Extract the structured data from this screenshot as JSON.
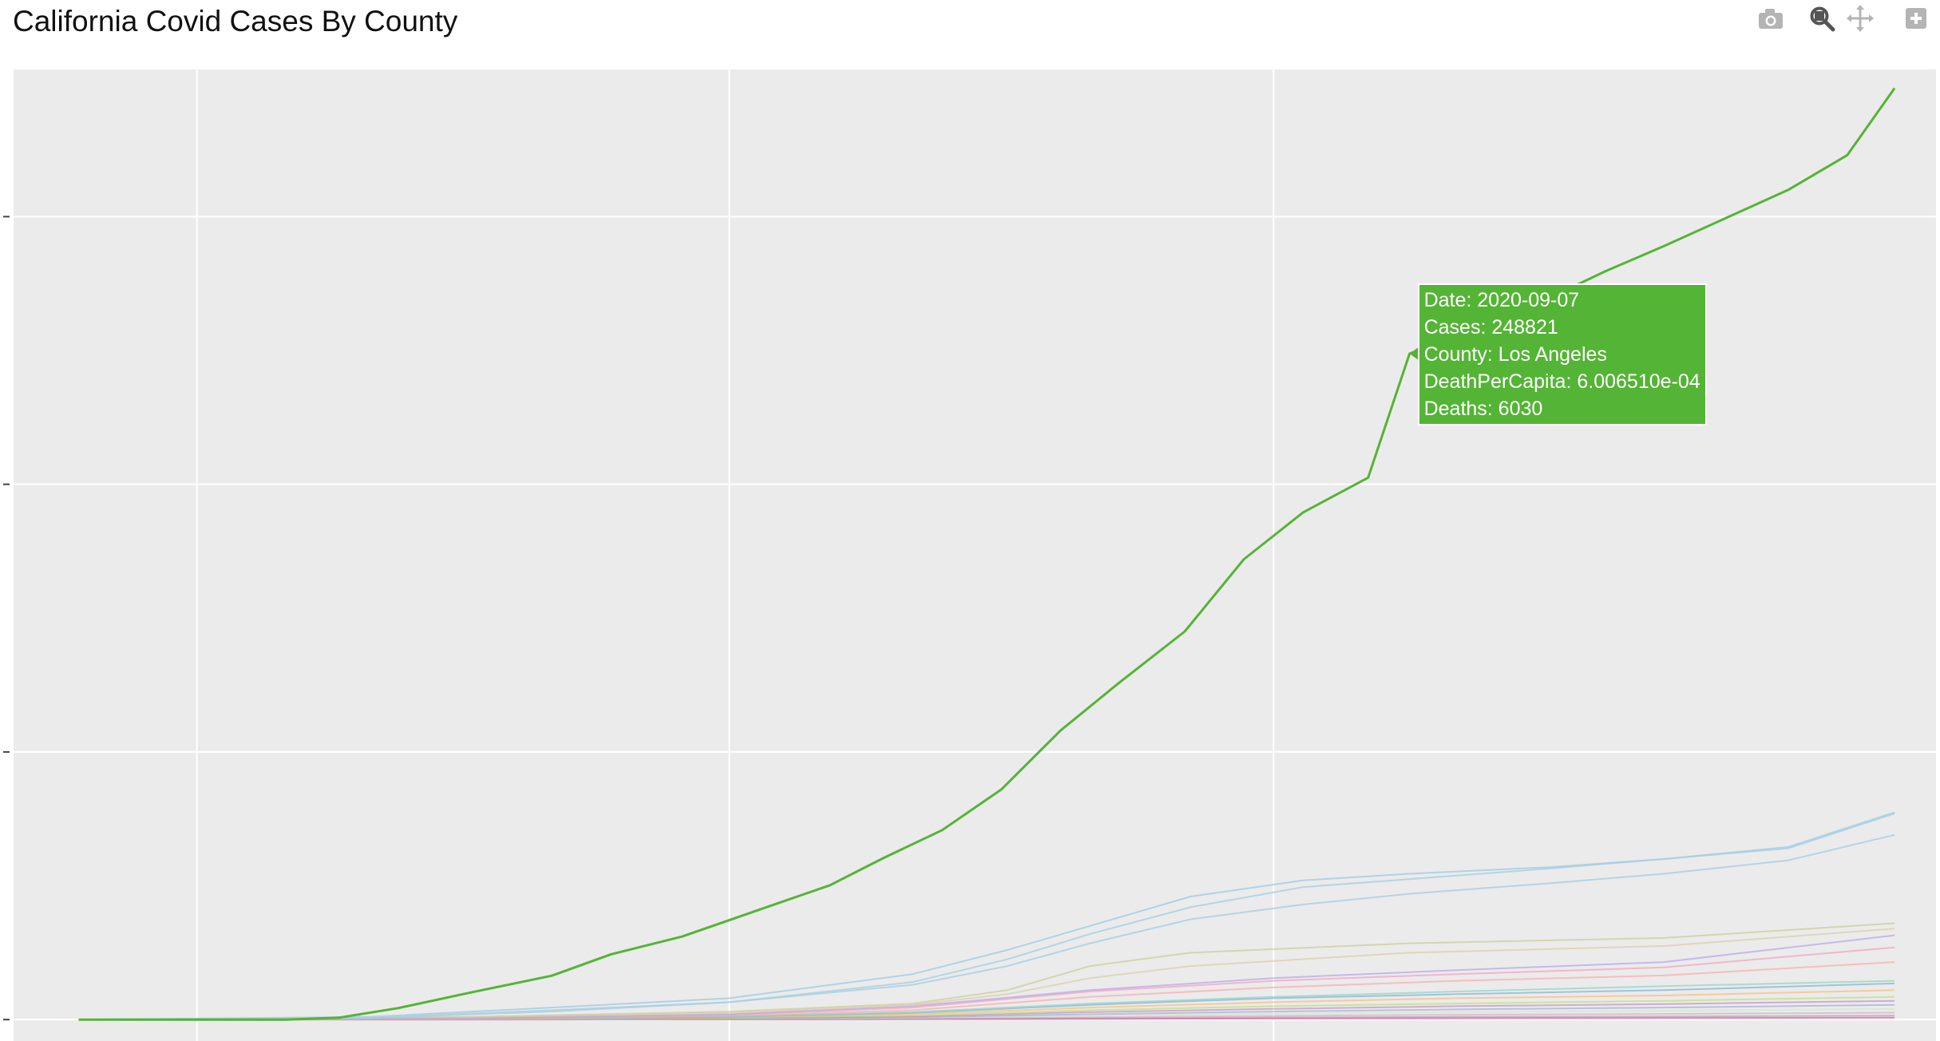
{
  "chart_title": "California Covid Cases By County",
  "modebar": {
    "camera": "camera-icon",
    "zoom": "zoom-icon",
    "pan": "pan-icon",
    "zoom_in": "zoom-in-icon"
  },
  "colors": {
    "background": "#ebebeb",
    "grid": "#ffffff",
    "highlight": "#54b435"
  },
  "hover": {
    "date": "Date: 2020-09-07",
    "cases": "Cases: 248821",
    "county": "County: Los Angeles",
    "death_per_capita": "DeathPerCapita: 6.006510e-04",
    "deaths": "Deaths: 6030"
  },
  "chart_data": {
    "type": "line",
    "title": "California Covid Cases By County",
    "x_range": [
      "2020-01-15",
      "2020-12-05"
    ],
    "y_range": [
      -8000,
      355000
    ],
    "grid": true,
    "legend": "none",
    "series": [
      {
        "color": "#54b435",
        "opacity": 1,
        "width": 3,
        "points": [
          [
            "2020-01-26",
            0
          ],
          [
            "2020-03-01",
            0
          ],
          [
            "2020-03-10",
            700
          ],
          [
            "2020-03-20",
            4300
          ],
          [
            "2020-04-01",
            10000
          ],
          [
            "2020-04-15",
            16400
          ],
          [
            "2020-04-25",
            24400
          ],
          [
            "2020-05-07",
            31000
          ],
          [
            "2020-05-20",
            41000
          ],
          [
            "2020-06-01",
            50200
          ],
          [
            "2020-06-10",
            60300
          ],
          [
            "2020-06-20",
            70800
          ],
          [
            "2020-06-30",
            86000
          ],
          [
            "2020-07-10",
            108000
          ],
          [
            "2020-07-20",
            126000
          ],
          [
            "2020-07-31",
            145000
          ],
          [
            "2020-08-10",
            172000
          ],
          [
            "2020-08-20",
            189500
          ],
          [
            "2020-08-31",
            202500
          ],
          [
            "2020-09-07",
            248821
          ],
          [
            "2020-09-20",
            260000
          ],
          [
            "2020-10-01",
            270000
          ],
          [
            "2020-10-10",
            279500
          ],
          [
            "2020-10-20",
            289000
          ],
          [
            "2020-10-31",
            300000
          ],
          [
            "2020-11-10",
            310000
          ],
          [
            "2020-11-20",
            323000
          ],
          [
            "2020-11-28",
            348000
          ]
        ]
      },
      {
        "color": "#a6cee3",
        "opacity": 0.85,
        "width": 2,
        "points": [
          [
            "2020-01-26",
            0
          ],
          [
            "2020-03-15",
            1000
          ],
          [
            "2020-04-15",
            4500
          ],
          [
            "2020-05-15",
            8000
          ],
          [
            "2020-06-15",
            17000
          ],
          [
            "2020-07-01",
            26000
          ],
          [
            "2020-07-15",
            35000
          ],
          [
            "2020-08-01",
            46000
          ],
          [
            "2020-08-20",
            52000
          ],
          [
            "2020-09-07",
            54500
          ],
          [
            "2020-10-01",
            57000
          ],
          [
            "2020-10-20",
            60000
          ],
          [
            "2020-11-10",
            64000
          ],
          [
            "2020-11-28",
            77000
          ]
        ]
      },
      {
        "color": "#a6cee3",
        "opacity": 0.8,
        "width": 2,
        "points": [
          [
            "2020-01-26",
            0
          ],
          [
            "2020-03-15",
            700
          ],
          [
            "2020-04-15",
            3500
          ],
          [
            "2020-05-15",
            6500
          ],
          [
            "2020-06-15",
            14000
          ],
          [
            "2020-07-01",
            22500
          ],
          [
            "2020-07-15",
            32000
          ],
          [
            "2020-08-01",
            42000
          ],
          [
            "2020-08-20",
            49500
          ],
          [
            "2020-09-07",
            52500
          ],
          [
            "2020-10-01",
            56500
          ],
          [
            "2020-10-20",
            60000
          ],
          [
            "2020-11-10",
            64500
          ],
          [
            "2020-11-28",
            77500
          ]
        ]
      },
      {
        "color": "#a6cee3",
        "opacity": 0.8,
        "width": 2,
        "points": [
          [
            "2020-01-26",
            0
          ],
          [
            "2020-03-15",
            600
          ],
          [
            "2020-04-15",
            3000
          ],
          [
            "2020-05-15",
            6500
          ],
          [
            "2020-06-15",
            13000
          ],
          [
            "2020-07-01",
            20000
          ],
          [
            "2020-07-15",
            28500
          ],
          [
            "2020-08-01",
            37500
          ],
          [
            "2020-08-20",
            43000
          ],
          [
            "2020-09-07",
            47000
          ],
          [
            "2020-10-01",
            51000
          ],
          [
            "2020-10-20",
            54500
          ],
          [
            "2020-11-10",
            59500
          ],
          [
            "2020-11-28",
            69000
          ]
        ]
      },
      {
        "color": "#c7c98f",
        "opacity": 0.65,
        "width": 2,
        "points": [
          [
            "2020-01-26",
            0
          ],
          [
            "2020-04-01",
            1000
          ],
          [
            "2020-05-15",
            3000
          ],
          [
            "2020-06-15",
            6000
          ],
          [
            "2020-07-01",
            11000
          ],
          [
            "2020-07-15",
            20000
          ],
          [
            "2020-08-01",
            25000
          ],
          [
            "2020-09-07",
            28500
          ],
          [
            "2020-10-20",
            30500
          ],
          [
            "2020-11-28",
            36000
          ]
        ]
      },
      {
        "color": "#d6c89a",
        "opacity": 0.6,
        "width": 2,
        "points": [
          [
            "2020-01-26",
            0
          ],
          [
            "2020-04-01",
            900
          ],
          [
            "2020-05-15",
            2500
          ],
          [
            "2020-06-15",
            5500
          ],
          [
            "2020-07-01",
            9500
          ],
          [
            "2020-07-15",
            15500
          ],
          [
            "2020-08-01",
            20000
          ],
          [
            "2020-09-07",
            25000
          ],
          [
            "2020-10-20",
            27500
          ],
          [
            "2020-11-28",
            34000
          ]
        ]
      },
      {
        "color": "#b8a3e8",
        "opacity": 0.7,
        "width": 2,
        "points": [
          [
            "2020-01-26",
            0
          ],
          [
            "2020-04-01",
            500
          ],
          [
            "2020-05-15",
            2000
          ],
          [
            "2020-06-15",
            5000
          ],
          [
            "2020-07-15",
            11000
          ],
          [
            "2020-08-15",
            15500
          ],
          [
            "2020-09-15",
            18500
          ],
          [
            "2020-10-20",
            21500
          ],
          [
            "2020-11-28",
            31500
          ]
        ]
      },
      {
        "color": "#f4a0c0",
        "opacity": 0.7,
        "width": 2,
        "points": [
          [
            "2020-01-26",
            0
          ],
          [
            "2020-04-01",
            500
          ],
          [
            "2020-05-15",
            1800
          ],
          [
            "2020-06-15",
            4500
          ],
          [
            "2020-07-15",
            10500
          ],
          [
            "2020-08-15",
            14500
          ],
          [
            "2020-09-15",
            17000
          ],
          [
            "2020-10-20",
            19500
          ],
          [
            "2020-11-28",
            27000
          ]
        ]
      },
      {
        "color": "#ff9e9e",
        "opacity": 0.6,
        "width": 2,
        "points": [
          [
            "2020-01-26",
            0
          ],
          [
            "2020-04-01",
            300
          ],
          [
            "2020-05-15",
            1500
          ],
          [
            "2020-06-15",
            3500
          ],
          [
            "2020-07-15",
            8500
          ],
          [
            "2020-08-15",
            12000
          ],
          [
            "2020-09-15",
            14500
          ],
          [
            "2020-10-20",
            16500
          ],
          [
            "2020-11-28",
            21500
          ]
        ]
      },
      {
        "color": "#8dd3c7",
        "opacity": 0.7,
        "width": 2,
        "points": [
          [
            "2020-01-26",
            0
          ],
          [
            "2020-04-01",
            300
          ],
          [
            "2020-05-15",
            1200
          ],
          [
            "2020-06-15",
            2800
          ],
          [
            "2020-07-15",
            6000
          ],
          [
            "2020-08-15",
            8500
          ],
          [
            "2020-09-15",
            10500
          ],
          [
            "2020-10-20",
            12500
          ],
          [
            "2020-11-28",
            14500
          ]
        ]
      },
      {
        "color": "#80b1d3",
        "opacity": 0.7,
        "width": 2,
        "points": [
          [
            "2020-01-26",
            0
          ],
          [
            "2020-04-01",
            250
          ],
          [
            "2020-05-15",
            1000
          ],
          [
            "2020-06-15",
            2500
          ],
          [
            "2020-07-15",
            5500
          ],
          [
            "2020-08-15",
            8000
          ],
          [
            "2020-09-15",
            9500
          ],
          [
            "2020-10-20",
            11000
          ],
          [
            "2020-11-28",
            13500
          ]
        ]
      },
      {
        "color": "#fdb462",
        "opacity": 0.6,
        "width": 2,
        "points": [
          [
            "2020-01-26",
            0
          ],
          [
            "2020-04-01",
            200
          ],
          [
            "2020-05-15",
            800
          ],
          [
            "2020-06-15",
            2000
          ],
          [
            "2020-07-15",
            4500
          ],
          [
            "2020-08-15",
            6500
          ],
          [
            "2020-09-15",
            8000
          ],
          [
            "2020-10-20",
            9000
          ],
          [
            "2020-11-28",
            11000
          ]
        ]
      },
      {
        "color": "#b3de69",
        "opacity": 0.6,
        "width": 2,
        "points": [
          [
            "2020-01-26",
            0
          ],
          [
            "2020-04-01",
            150
          ],
          [
            "2020-05-15",
            600
          ],
          [
            "2020-06-15",
            1500
          ],
          [
            "2020-07-15",
            3500
          ],
          [
            "2020-08-15",
            5000
          ],
          [
            "2020-09-15",
            6000
          ],
          [
            "2020-10-20",
            7000
          ],
          [
            "2020-11-28",
            8500
          ]
        ]
      },
      {
        "color": "#bc80bd",
        "opacity": 0.6,
        "width": 2,
        "points": [
          [
            "2020-01-26",
            0
          ],
          [
            "2020-04-01",
            100
          ],
          [
            "2020-05-15",
            500
          ],
          [
            "2020-06-15",
            1200
          ],
          [
            "2020-07-15",
            2800
          ],
          [
            "2020-08-15",
            4000
          ],
          [
            "2020-09-15",
            5000
          ],
          [
            "2020-10-20",
            5800
          ],
          [
            "2020-11-28",
            7000
          ]
        ]
      },
      {
        "color": "#9aa0d9",
        "opacity": 0.6,
        "width": 2,
        "points": [
          [
            "2020-01-26",
            0
          ],
          [
            "2020-04-01",
            80
          ],
          [
            "2020-05-15",
            350
          ],
          [
            "2020-06-15",
            900
          ],
          [
            "2020-07-15",
            2000
          ],
          [
            "2020-08-15",
            3000
          ],
          [
            "2020-09-15",
            3800
          ],
          [
            "2020-10-20",
            4500
          ],
          [
            "2020-11-28",
            5500
          ]
        ]
      },
      {
        "color": "#ccebc5",
        "opacity": 0.7,
        "width": 2,
        "points": [
          [
            "2020-01-26",
            0
          ],
          [
            "2020-04-01",
            60
          ],
          [
            "2020-05-15",
            250
          ],
          [
            "2020-06-15",
            700
          ],
          [
            "2020-07-15",
            1500
          ],
          [
            "2020-08-15",
            2200
          ],
          [
            "2020-09-15",
            2800
          ],
          [
            "2020-10-20",
            3300
          ],
          [
            "2020-11-28",
            4000
          ]
        ]
      },
      {
        "color": "#d9a0c8",
        "opacity": 0.6,
        "width": 2,
        "points": [
          [
            "2020-01-26",
            0
          ],
          [
            "2020-04-01",
            40
          ],
          [
            "2020-05-15",
            150
          ],
          [
            "2020-06-15",
            400
          ],
          [
            "2020-07-15",
            900
          ],
          [
            "2020-08-15",
            1400
          ],
          [
            "2020-09-15",
            1800
          ],
          [
            "2020-10-20",
            2100
          ],
          [
            "2020-11-28",
            2600
          ]
        ]
      },
      {
        "color": "#8c8c8c",
        "opacity": 0.5,
        "width": 2,
        "points": [
          [
            "2020-01-26",
            0
          ],
          [
            "2020-04-01",
            20
          ],
          [
            "2020-05-15",
            80
          ],
          [
            "2020-06-15",
            200
          ],
          [
            "2020-07-15",
            500
          ],
          [
            "2020-08-15",
            800
          ],
          [
            "2020-09-15",
            1000
          ],
          [
            "2020-10-20",
            1200
          ],
          [
            "2020-11-28",
            1500
          ]
        ]
      },
      {
        "color": "#e7298a",
        "opacity": 0.55,
        "width": 2,
        "points": [
          [
            "2020-01-26",
            0
          ],
          [
            "2020-05-15",
            50
          ],
          [
            "2020-07-15",
            250
          ],
          [
            "2020-09-15",
            500
          ],
          [
            "2020-11-28",
            700
          ]
        ]
      }
    ]
  }
}
